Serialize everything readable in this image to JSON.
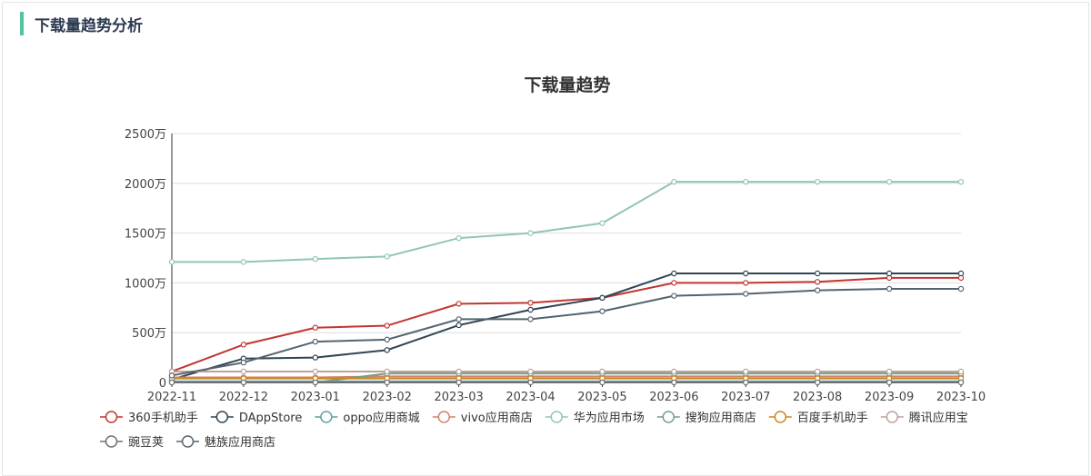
{
  "header": {
    "title": "下载量趋势分析",
    "accent": "#52c4a0"
  },
  "chart_data": {
    "type": "line",
    "title": "下载量趋势",
    "xlabel": "",
    "ylabel": "",
    "ylim": [
      0,
      2500
    ],
    "y_ticks": [
      "0",
      "500万",
      "1000万",
      "1500万",
      "2000万",
      "2500万"
    ],
    "y_tick_values": [
      0,
      500,
      1000,
      1500,
      2000,
      2500
    ],
    "grid": true,
    "legend_position": "bottom",
    "categories": [
      "2022-11",
      "2022-12",
      "2023-01",
      "2023-02",
      "2023-03",
      "2023-04",
      "2023-05",
      "2023-06",
      "2023-07",
      "2023-08",
      "2023-09",
      "2023-10"
    ],
    "series": [
      {
        "name": "360手机助手",
        "color": "#c23531",
        "values": [
          110,
          380,
          550,
          570,
          790,
          800,
          850,
          1000,
          1000,
          1010,
          1050,
          1050
        ]
      },
      {
        "name": "DAppStore",
        "color": "#2f4554",
        "values": [
          30,
          240,
          250,
          325,
          575,
          730,
          850,
          1095,
          1095,
          1095,
          1095,
          1095
        ]
      },
      {
        "name": "oppo应用商城",
        "color": "#61a0a8",
        "values": [
          10,
          10,
          10,
          10,
          10,
          10,
          10,
          10,
          10,
          10,
          10,
          10
        ]
      },
      {
        "name": "vivo应用商店",
        "color": "#d48265",
        "values": [
          50,
          50,
          50,
          60,
          60,
          60,
          60,
          60,
          60,
          60,
          60,
          60
        ]
      },
      {
        "name": "华为应用市场",
        "color": "#91c7ae",
        "values": [
          1210,
          1210,
          1240,
          1265,
          1450,
          1500,
          1600,
          2015,
          2015,
          2015,
          2015,
          2015
        ]
      },
      {
        "name": "搜狗应用商店",
        "color": "#749f83",
        "values": [
          0,
          0,
          0,
          90,
          90,
          90,
          90,
          90,
          90,
          90,
          90,
          90
        ]
      },
      {
        "name": "百度手机助手",
        "color": "#ca8622",
        "values": [
          40,
          40,
          40,
          40,
          40,
          40,
          40,
          40,
          40,
          40,
          40,
          40
        ]
      },
      {
        "name": "腾讯应用宝",
        "color": "#bda29a",
        "values": [
          110,
          110,
          110,
          110,
          110,
          110,
          110,
          110,
          110,
          110,
          110,
          110
        ]
      },
      {
        "name": "豌豆荚",
        "color": "#6e7074",
        "values": [
          0,
          0,
          0,
          0,
          0,
          0,
          0,
          0,
          0,
          0,
          0,
          0
        ]
      },
      {
        "name": "魅族应用商店",
        "color": "#546570",
        "values": [
          70,
          200,
          410,
          430,
          635,
          635,
          715,
          870,
          890,
          925,
          940,
          940
        ]
      }
    ]
  }
}
